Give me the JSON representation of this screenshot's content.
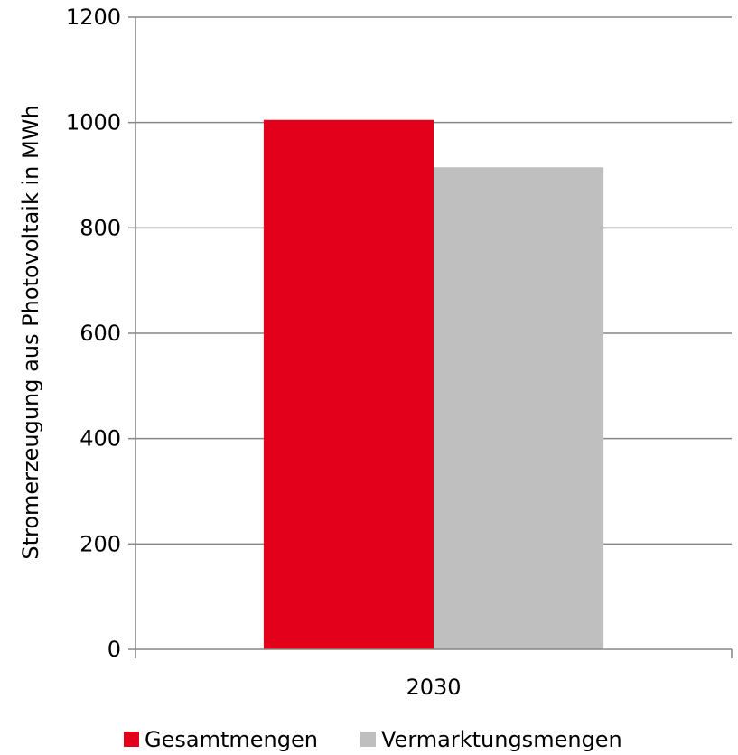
{
  "chart_data": {
    "type": "bar",
    "categories": [
      "2030"
    ],
    "series": [
      {
        "name": "Gesamtmengen",
        "values": [
          1005
        ],
        "color": "#e2001a"
      },
      {
        "name": "Vermarktungsmengen",
        "values": [
          915
        ],
        "color": "#bfbfbf"
      }
    ],
    "ylabel": "Stromerzeugung aus Photovoltaik in MWh",
    "xlabel": "",
    "ylim": [
      0,
      1200
    ],
    "yticks": [
      0,
      200,
      400,
      600,
      800,
      1000,
      1200
    ],
    "grid": true,
    "legend": "bottom"
  }
}
